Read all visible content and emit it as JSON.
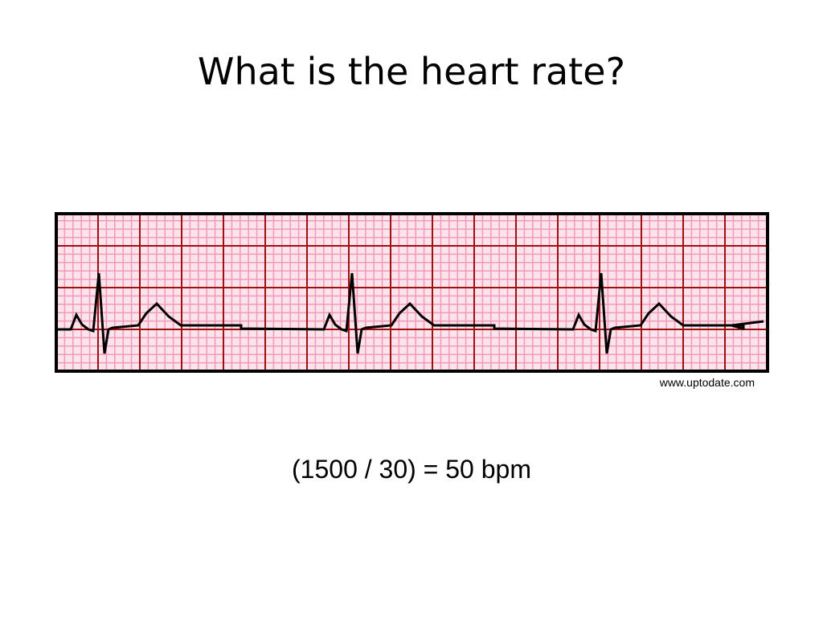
{
  "slide": {
    "title": "What is the heart rate?",
    "source": "www.uptodate.com",
    "caption": "(1500 / 30) = 50 bpm"
  }
}
